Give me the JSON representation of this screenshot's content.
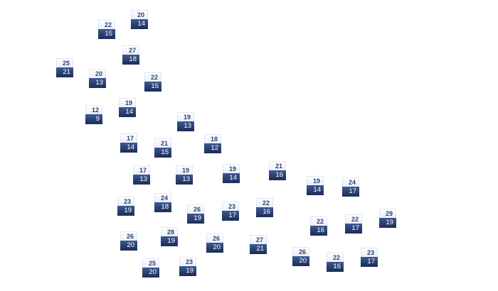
{
  "stations": [
    {
      "high": "20",
      "low": "14"
    },
    {
      "high": "22",
      "low": "15"
    },
    {
      "high": "27",
      "low": "18"
    },
    {
      "high": "25",
      "low": "21"
    },
    {
      "high": "20",
      "low": "13"
    },
    {
      "high": "22",
      "low": "15"
    },
    {
      "high": "19",
      "low": "14"
    },
    {
      "high": "12",
      "low": "9"
    },
    {
      "high": "19",
      "low": "13"
    },
    {
      "high": "17",
      "low": "14"
    },
    {
      "high": "21",
      "low": "15"
    },
    {
      "high": "18",
      "low": "12"
    },
    {
      "high": "17",
      "low": "13"
    },
    {
      "high": "19",
      "low": "13"
    },
    {
      "high": "19",
      "low": "14"
    },
    {
      "high": "21",
      "low": "16"
    },
    {
      "high": "23",
      "low": "19"
    },
    {
      "high": "24",
      "low": "18"
    },
    {
      "high": "26",
      "low": "19"
    },
    {
      "high": "23",
      "low": "17"
    },
    {
      "high": "22",
      "low": "16"
    },
    {
      "high": "26",
      "low": "20"
    },
    {
      "high": "28",
      "low": "19"
    },
    {
      "high": "26",
      "low": "20"
    },
    {
      "high": "27",
      "low": "21"
    },
    {
      "high": "25",
      "low": "20"
    },
    {
      "high": "23",
      "low": "19"
    },
    {
      "high": "19",
      "low": "14"
    },
    {
      "high": "24",
      "low": "17"
    },
    {
      "high": "22",
      "low": "16"
    },
    {
      "high": "22",
      "low": "17"
    },
    {
      "high": "29",
      "low": "19"
    },
    {
      "high": "26",
      "low": "20"
    },
    {
      "high": "22",
      "low": "16"
    },
    {
      "high": "23",
      "low": "17"
    }
  ],
  "colors": {
    "high_text": "#2e4272",
    "low_bg": "#1b2c58",
    "low_text": "#ffffff"
  }
}
